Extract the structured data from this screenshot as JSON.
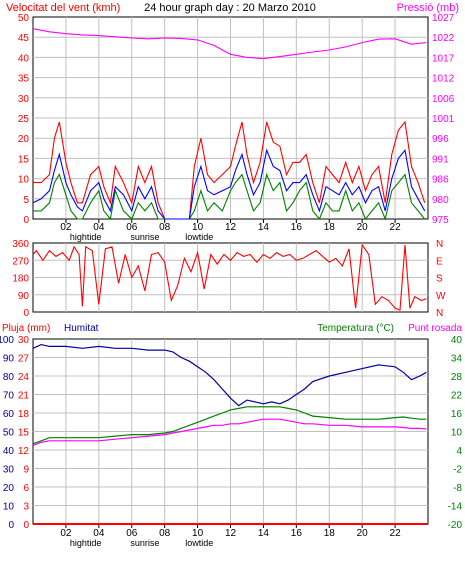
{
  "header": {
    "wind_title": "Velocitat del vent (kmh)",
    "graph_title": "24 hour graph day : 20 Marzo 2010",
    "pressure_title": "Pressió (mb)",
    "rain_title": "Pluja (mm)",
    "humidity_title": "Humitat",
    "temperature_title": "Temperatura (°C)",
    "dewpoint_title": "Punt rosada"
  },
  "colors": {
    "wind_speed": "#ff0000",
    "wind_gust": "#0000ff",
    "wind_avg": "#008000",
    "pressure": "#ff00ff",
    "direction": "#ff0000",
    "humidity": "#0000a0",
    "temperature": "#008000",
    "dewpoint": "#ff00ff",
    "rain": "#ff0000",
    "grid": "#c0c0c0"
  },
  "chart_data": [
    {
      "type": "line",
      "name_hint": "wind-and-pressure",
      "x_ticks": [
        "02",
        "04",
        "06",
        "08",
        "10",
        "12",
        "14",
        "16",
        "18",
        "20",
        "22"
      ],
      "x_range": [
        0,
        24
      ],
      "y_left_ticks": [
        "0",
        "5",
        "10",
        "15",
        "20",
        "25",
        "30",
        "35",
        "40",
        "45",
        "50"
      ],
      "y_left_range": [
        0,
        50
      ],
      "y_right_ticks": [
        "975",
        "980",
        "986",
        "991",
        "996",
        "1001",
        "1006",
        "1012",
        "1017",
        "1022",
        "1027"
      ],
      "y_right_range": [
        975,
        1027
      ],
      "markers": [
        {
          "label": "hightide",
          "x": 3.2
        },
        {
          "label": "sunrise",
          "x": 6.8
        },
        {
          "label": "lowtide",
          "x": 10.1
        }
      ],
      "series": [
        {
          "key": "pressure",
          "axis": "right",
          "x": [
            0,
            1,
            2,
            3,
            4,
            5,
            6,
            7,
            8,
            9,
            10,
            11,
            12,
            13,
            14,
            15,
            16,
            17,
            18,
            19,
            20,
            21,
            22,
            23,
            23.9
          ],
          "values": [
            1024.0,
            1023.2,
            1022.7,
            1022.4,
            1022.2,
            1021.9,
            1021.6,
            1021.4,
            1021.6,
            1021.5,
            1021.1,
            1019.7,
            1017.4,
            1016.6,
            1016.3,
            1016.8,
            1017.4,
            1018.0,
            1018.5,
            1019.3,
            1020.4,
            1021.3,
            1021.4,
            1020.0,
            1020.4
          ]
        },
        {
          "key": "wind_speed",
          "axis": "left",
          "x": [
            0,
            0.5,
            1,
            1.3,
            1.6,
            2,
            2.3,
            2.7,
            3,
            3.5,
            4,
            4.3,
            4.7,
            5,
            5.5,
            6,
            6.4,
            6.8,
            7.2,
            7.6,
            8,
            9,
            9.5,
            9.8,
            10.2,
            10.6,
            11,
            11.5,
            12,
            12.3,
            12.7,
            13,
            13.4,
            13.8,
            14.2,
            14.6,
            15,
            15.4,
            15.8,
            16.2,
            16.6,
            17,
            17.4,
            17.8,
            18.2,
            18.6,
            19,
            19.4,
            19.8,
            20.2,
            20.6,
            21,
            21.4,
            21.8,
            22.2,
            22.6,
            23,
            23.4,
            23.8
          ],
          "values": [
            9,
            9,
            11,
            20,
            24,
            14,
            9,
            4,
            4,
            11,
            13,
            8,
            4,
            13,
            9,
            4,
            13,
            9,
            13,
            4,
            0,
            0,
            0,
            13,
            20,
            11,
            9,
            11,
            13,
            18,
            24,
            16,
            9,
            14,
            24,
            19,
            18,
            11,
            14,
            14,
            16,
            9,
            4,
            13,
            11,
            9,
            14,
            9,
            13,
            7,
            11,
            13,
            4,
            16,
            22,
            24,
            13,
            9,
            4
          ]
        },
        {
          "key": "wind_gust",
          "axis": "left",
          "x": [
            0,
            0.5,
            1,
            1.3,
            1.6,
            2,
            2.3,
            2.7,
            3,
            3.5,
            4,
            4.3,
            4.7,
            5,
            5.5,
            6,
            6.4,
            6.8,
            7.2,
            7.6,
            8,
            9,
            9.5,
            9.8,
            10.2,
            10.6,
            11,
            11.5,
            12,
            12.3,
            12.7,
            13,
            13.4,
            13.8,
            14.2,
            14.6,
            15,
            15.4,
            15.8,
            16.2,
            16.6,
            17,
            17.4,
            17.8,
            18.2,
            18.6,
            19,
            19.4,
            19.8,
            20.2,
            20.6,
            21,
            21.4,
            21.8,
            22.2,
            22.6,
            23,
            23.4,
            23.8
          ],
          "values": [
            4,
            5,
            7,
            12,
            16,
            9,
            6,
            3,
            2,
            7,
            9,
            5,
            2,
            8,
            6,
            2,
            8,
            5,
            8,
            2,
            0,
            0,
            0,
            8,
            13,
            7,
            6,
            7,
            8,
            12,
            16,
            11,
            6,
            9,
            17,
            13,
            12,
            7,
            9,
            9,
            11,
            6,
            2,
            8,
            7,
            6,
            9,
            6,
            8,
            4,
            7,
            8,
            2,
            10,
            15,
            17,
            8,
            5,
            2
          ]
        },
        {
          "key": "wind_avg",
          "axis": "left",
          "x": [
            0,
            0.5,
            1,
            1.3,
            1.6,
            2,
            2.3,
            2.7,
            3,
            3.5,
            4,
            4.3,
            4.7,
            5,
            5.5,
            6,
            6.4,
            6.8,
            7.2,
            7.6,
            8,
            9,
            9.5,
            9.8,
            10.2,
            10.6,
            11,
            11.5,
            12,
            12.3,
            12.7,
            13,
            13.4,
            13.8,
            14.2,
            14.6,
            15,
            15.4,
            15.8,
            16.2,
            16.6,
            17,
            17.4,
            17.8,
            18.2,
            18.6,
            19,
            19.4,
            19.8,
            20.2,
            20.6,
            21,
            21.4,
            21.8,
            22.2,
            22.6,
            23,
            23.4,
            23.8
          ],
          "values": [
            2,
            2,
            4,
            9,
            11,
            6,
            2,
            0,
            0,
            4,
            7,
            2,
            0,
            7,
            2,
            0,
            4,
            2,
            4,
            0,
            0,
            0,
            0,
            2,
            7,
            2,
            4,
            2,
            7,
            9,
            11,
            7,
            2,
            4,
            11,
            7,
            9,
            2,
            4,
            7,
            9,
            2,
            0,
            4,
            2,
            2,
            7,
            2,
            4,
            0,
            2,
            4,
            0,
            7,
            9,
            11,
            4,
            2,
            0
          ]
        }
      ]
    },
    {
      "type": "line",
      "name_hint": "wind-direction",
      "x_range": [
        0,
        24
      ],
      "y_left_ticks": [
        "0",
        "90",
        "180",
        "270",
        "360"
      ],
      "y_left_range": [
        0,
        360
      ],
      "y_right_ticks": [
        "N",
        "W",
        "S",
        "E",
        "N"
      ],
      "series": [
        {
          "key": "direction",
          "x": [
            0,
            0.2,
            0.6,
            1,
            1.4,
            1.8,
            2.2,
            2.5,
            2.8,
            3,
            3.2,
            3.6,
            4,
            4.4,
            4.8,
            5.2,
            5.6,
            6,
            6.4,
            6.8,
            7.2,
            7.6,
            8,
            8.4,
            8.8,
            9.2,
            9.6,
            10,
            10.4,
            10.8,
            11.2,
            11.6,
            12,
            12.4,
            12.8,
            13.2,
            13.6,
            14,
            14.4,
            14.8,
            15.2,
            15.6,
            16,
            16.4,
            16.8,
            17.2,
            17.6,
            18,
            18.4,
            18.8,
            19.2,
            19.6,
            20,
            20.4,
            20.8,
            21.2,
            21.6,
            22,
            22.3,
            22.6,
            22.9,
            23.2,
            23.6,
            23.9
          ],
          "values": [
            300,
            320,
            270,
            320,
            290,
            310,
            270,
            340,
            300,
            30,
            340,
            320,
            40,
            330,
            340,
            150,
            300,
            180,
            240,
            110,
            300,
            310,
            260,
            60,
            140,
            280,
            210,
            310,
            120,
            300,
            250,
            300,
            270,
            310,
            290,
            300,
            260,
            300,
            280,
            310,
            290,
            300,
            270,
            280,
            300,
            320,
            290,
            260,
            280,
            240,
            330,
            20,
            350,
            300,
            40,
            80,
            60,
            20,
            10,
            350,
            20,
            80,
            60,
            70
          ]
        }
      ]
    },
    {
      "type": "line",
      "name_hint": "humidity-temperature",
      "x_ticks": [
        "02",
        "04",
        "06",
        "08",
        "10",
        "12",
        "14",
        "16",
        "18",
        "20",
        "22"
      ],
      "x_range": [
        0,
        24
      ],
      "markers": [
        {
          "label": "hightide",
          "x": 3.2
        },
        {
          "label": "sunrise",
          "x": 6.8
        },
        {
          "label": "lowtide",
          "x": 10.1
        }
      ],
      "y_rain_ticks": [
        "0",
        "3",
        "6",
        "9",
        "12",
        "15",
        "18",
        "21",
        "24",
        "27",
        "30"
      ],
      "y_rain_range": [
        0,
        30
      ],
      "y_humidity_ticks": [
        "0",
        "10",
        "20",
        "30",
        "40",
        "50",
        "60",
        "70",
        "80",
        "90",
        "100"
      ],
      "y_humidity_range": [
        0,
        100
      ],
      "y_right_ticks": [
        "-20",
        "-14",
        "-8",
        "-2",
        "4",
        "10",
        "16",
        "22",
        "28",
        "34",
        "40"
      ],
      "y_right_range": [
        -20,
        40
      ],
      "series": [
        {
          "key": "humidity",
          "axis": "humidity",
          "x": [
            0,
            0.5,
            1,
            2,
            3,
            4,
            5,
            6,
            7,
            8,
            8.5,
            9,
            9.5,
            10,
            10.5,
            11,
            11.5,
            12,
            12.5,
            13,
            13.5,
            14,
            14.5,
            15,
            15.5,
            16,
            16.5,
            17,
            18,
            19,
            20,
            21,
            22,
            22.5,
            23,
            23.5,
            23.9
          ],
          "values": [
            95,
            97,
            96,
            96,
            95,
            96,
            95,
            95,
            94,
            94,
            93,
            90,
            88,
            85,
            82,
            78,
            73,
            68,
            64,
            67,
            66,
            65,
            66,
            65,
            67,
            70,
            73,
            77,
            80,
            82,
            84,
            86,
            85,
            82,
            78,
            80,
            82
          ]
        },
        {
          "key": "temperature",
          "axis": "right",
          "x": [
            0,
            0.5,
            1,
            2,
            3,
            4,
            5,
            6,
            7,
            8,
            8.5,
            9,
            9.5,
            10,
            10.5,
            11,
            11.5,
            12,
            12.5,
            13,
            13.5,
            14,
            14.5,
            15,
            15.5,
            16,
            16.5,
            17,
            18,
            19,
            20,
            21,
            22,
            22.5,
            23,
            23.5,
            23.9
          ],
          "values": [
            6,
            7,
            8,
            8,
            8,
            8,
            8.5,
            9,
            9,
            9.5,
            10,
            11,
            12,
            13,
            14,
            15,
            16,
            17,
            17.5,
            18,
            18,
            18,
            18,
            18,
            17.5,
            17,
            16,
            15,
            14.5,
            14,
            14,
            14,
            14.5,
            14.7,
            14.3,
            14.0,
            14.0
          ]
        },
        {
          "key": "dewpoint",
          "axis": "right",
          "x": [
            0,
            0.5,
            1,
            2,
            3,
            4,
            5,
            6,
            7,
            8,
            8.5,
            9,
            9.5,
            10,
            10.5,
            11,
            11.5,
            12,
            12.5,
            13,
            13.5,
            14,
            14.5,
            15,
            15.5,
            16,
            16.5,
            17,
            18,
            19,
            20,
            21,
            22,
            22.5,
            23,
            23.5,
            23.9
          ],
          "values": [
            5.5,
            6.5,
            7,
            7,
            7,
            7,
            7.5,
            8,
            8.5,
            9,
            9.5,
            10,
            10.5,
            11,
            11.5,
            12,
            12,
            12.5,
            12.5,
            13,
            13.5,
            14,
            14,
            14,
            13.5,
            13,
            12.5,
            12.5,
            12,
            12,
            11.5,
            11.5,
            11.5,
            11.3,
            11.0,
            11.0,
            10.8
          ]
        },
        {
          "key": "rain",
          "axis": "rain",
          "x": [
            0,
            24
          ],
          "values": [
            0,
            0
          ]
        }
      ]
    }
  ]
}
